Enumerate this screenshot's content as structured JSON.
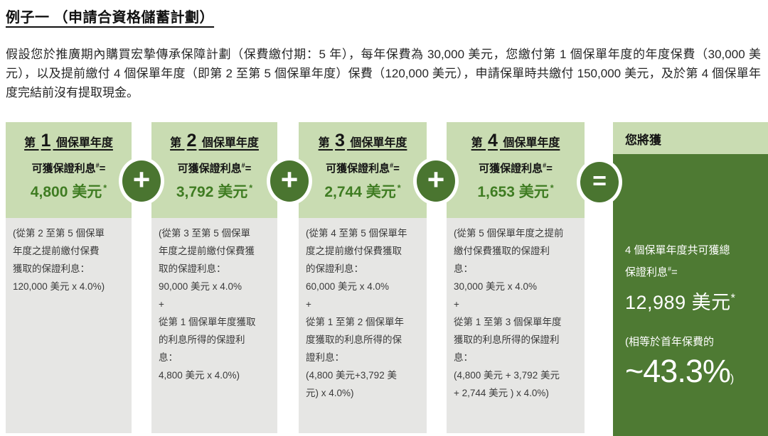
{
  "page": {
    "title": "例子一 （申請合資格儲蓄計劃）",
    "intro": "假設您於推廣期內購買宏摯傳承保障計劃（保費繳付期：5 年），每年保費為 30,000 美元，您繳付第 1 個保單年度的年度保費（30,000 美元），以及提前繳付 4 個保單年度（即第 2 至第 5 個保單年度）保費（120,000 美元），申請保單時共繳付 150,000 美元，及於第 4 個保單年度完結前沒有提取現金。"
  },
  "operators": {
    "plus": "+",
    "equals": "="
  },
  "columns": [
    {
      "year_prefix": "第 ",
      "year_num": "1",
      "year_suffix": " 個保單年度",
      "interest_label": "可獲保證利息",
      "interest_sup": "#",
      "interest_equals": "=",
      "amount": "4,800 美元",
      "amount_sup": "*",
      "detail": "(從第 2 至第 5 個保單\n年度之提前繳付保費\n獲取的保證利息：\n120,000 美元 x 4.0%)"
    },
    {
      "year_prefix": "第 ",
      "year_num": "2",
      "year_suffix": " 個保單年度",
      "interest_label": "可獲保證利息",
      "interest_sup": "#",
      "interest_equals": "=",
      "amount": "3,792 美元",
      "amount_sup": "*",
      "detail": "(從第 3 至第 5 個保單\n年度之提前繳付保費獲\n取的保證利息：\n90,000 美元 x 4.0%\n+\n從第 1 個保單年度獲取\n的利息所得的保證利\n息：\n4,800 美元 x 4.0%)"
    },
    {
      "year_prefix": "第 ",
      "year_num": "3",
      "year_suffix": " 個保單年度",
      "interest_label": "可獲保證利息",
      "interest_sup": "#",
      "interest_equals": "=",
      "amount": "2,744 美元",
      "amount_sup": "*",
      "detail": "(從第 4 至第 5 個保單年\n度之提前繳付保費獲取\n的保證利息：\n60,000 美元 x 4.0%\n+\n從第 1 至第 2 個保單年\n度獲取的利息所得的保\n證利息：\n(4,800 美元+3,792 美\n元) x 4.0%)"
    },
    {
      "year_prefix": "第 ",
      "year_num": "4",
      "year_suffix": " 個保單年度",
      "interest_label": "可獲保證利息",
      "interest_sup": "#",
      "interest_equals": "=",
      "amount": "1,653 美元",
      "amount_sup": "*",
      "detail": "(從第 5 個保單年度之提前\n繳付保費獲取的保證利\n息：\n30,000 美元 x 4.0%\n+\n從第 1 至第 3 個保單年度\n獲取的利息所得的保證利\n息：\n(4,800 美元 + 3,792 美元\n+ 2,744 美元 ) x 4.0%)"
    }
  ],
  "result": {
    "header": "您將獲",
    "total_label": "4 個保單年度共可獲總\n保證利息",
    "total_sup": "#",
    "total_equals": "=",
    "total_amount": "12,989 美元",
    "total_amount_sup": "*",
    "note_intro": "(相等於首年保費的",
    "note_value": "~43.3%",
    "note_close": ")"
  },
  "colors": {
    "header_light_green": "#c9dcb2",
    "result_dark_green": "#4e7a33",
    "detail_gray": "#e6e6e4",
    "amount_green": "#3f7c22",
    "operator_green": "#4a7530"
  }
}
